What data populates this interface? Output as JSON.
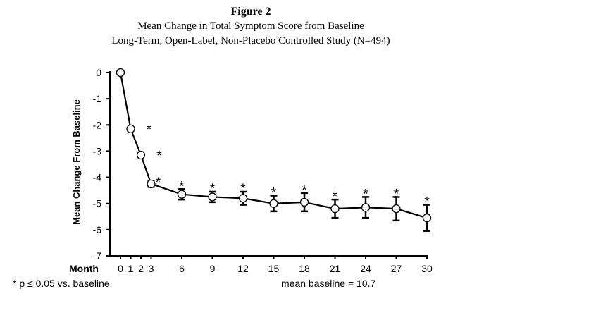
{
  "figure_label": "Figure 2",
  "title": "Mean Change in Total Symptom Score from Baseline",
  "subtitle": "Long-Term, Open-Label, Non-Placebo Controlled Study (N=494)",
  "chart_data": {
    "type": "line",
    "title": "Mean Change in Total Symptom Score from Baseline",
    "subtitle": "Long-Term, Open-Label, Non-Placebo Controlled Study (N=494)",
    "xlabel": "Month",
    "ylabel": "Mean Change From Baseline",
    "x_ticks": [
      0,
      1,
      2,
      3,
      6,
      9,
      12,
      15,
      18,
      21,
      24,
      27,
      30
    ],
    "y_ticks": [
      0,
      -1,
      -2,
      -3,
      -4,
      -5,
      -6,
      -7
    ],
    "ylim": [
      -7,
      0
    ],
    "xlim": [
      0,
      30
    ],
    "grid": false,
    "series": [
      {
        "x": [
          0,
          1,
          2,
          3,
          6,
          9,
          12,
          15,
          18,
          21,
          24,
          27,
          30
        ],
        "y": [
          0,
          -2.15,
          -3.15,
          -4.25,
          -4.65,
          -4.75,
          -4.8,
          -5.0,
          -4.95,
          -5.2,
          -5.15,
          -5.2,
          -5.55
        ],
        "error": [
          0,
          0,
          0,
          0.12,
          0.2,
          0.2,
          0.25,
          0.3,
          0.35,
          0.35,
          0.4,
          0.45,
          0.5
        ],
        "significant": [
          false,
          true,
          true,
          true,
          true,
          true,
          true,
          true,
          true,
          true,
          true,
          true,
          true
        ]
      }
    ],
    "significance_marker": "*",
    "footnote": "* p ≤ 0.05 vs. baseline",
    "annotation": "mean baseline = 10.7",
    "line_color": "#000000",
    "marker_fill": "#ffffff"
  }
}
